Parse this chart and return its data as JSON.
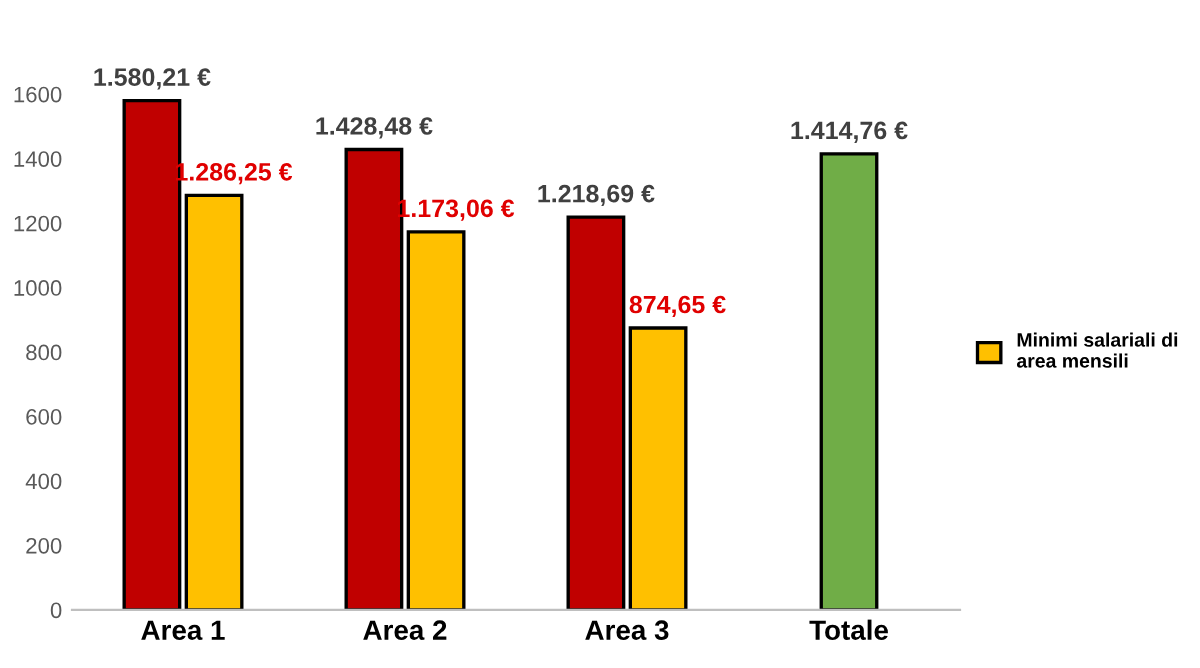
{
  "chart_data": {
    "type": "bar",
    "categories": [
      "Area 1",
      "Area 2",
      "Area 3",
      "Totale"
    ],
    "series": [
      {
        "colors": [
          "#c00000",
          "#c00000",
          "#c00000",
          "#70ad47"
        ],
        "values": [
          1580.21,
          1428.48,
          1218.69,
          1414.76
        ],
        "value_labels": [
          "1.580,21 €",
          "1.428,48 €",
          "1.218,69 €",
          "1.414,76 €"
        ]
      },
      {
        "name": "Minimi salariali di\narea mensili",
        "color": "#ffc000",
        "values": [
          1286.25,
          1173.06,
          874.65,
          null
        ],
        "value_labels": [
          "1.286,25 €",
          "1.173,06 €",
          "874,65 €",
          null
        ]
      }
    ],
    "ylim": [
      0,
      1600
    ],
    "yticks": [
      0,
      200,
      400,
      600,
      800,
      1000,
      1200,
      1400,
      1600
    ],
    "grid": false,
    "legend": "right"
  }
}
